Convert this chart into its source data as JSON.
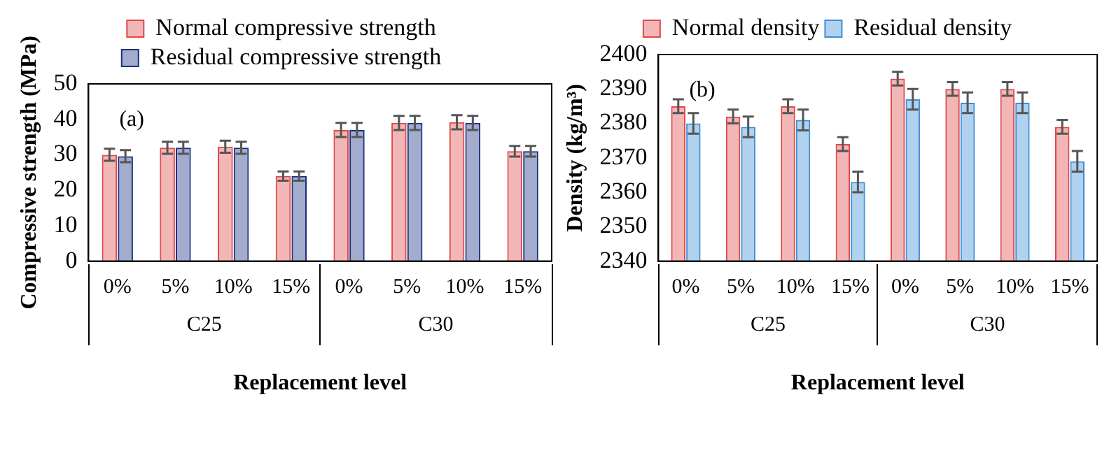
{
  "chart_data": [
    {
      "type": "bar",
      "title": "(a)",
      "ylabel": "Compressive strength (MPa)",
      "xlabel": "Replacement level",
      "categories": [
        "0%",
        "5%",
        "10%",
        "15%",
        "0%",
        "5%",
        "10%",
        "15%"
      ],
      "annotations": [
        "C25",
        "C30"
      ],
      "series": [
        {
          "name": "Normal compressive strength",
          "color": "#e04848",
          "values": [
            30,
            32,
            32.3,
            24,
            37,
            39,
            39.2,
            31
          ],
          "errors": [
            1.7,
            1.7,
            1.7,
            1.3,
            2,
            2,
            2,
            1.5
          ]
        },
        {
          "name": "Residual compressive strength",
          "color": "#1a2f80",
          "values": [
            29.6,
            32,
            32,
            24,
            37,
            39,
            39,
            31
          ],
          "errors": [
            1.7,
            1.7,
            1.7,
            1.3,
            2,
            2,
            2,
            1.5
          ]
        }
      ],
      "ylim": [
        0,
        50
      ],
      "yticks": [
        0,
        10,
        20,
        30,
        40,
        50
      ],
      "grid": false,
      "legend": "top"
    },
    {
      "type": "bar",
      "title": "(b)",
      "ylabel": "Density (kg/m³)",
      "xlabel": "Replacement level",
      "categories": [
        "0%",
        "5%",
        "10%",
        "15%",
        "0%",
        "5%",
        "10%",
        "15%"
      ],
      "annotations": [
        "C25",
        "C30"
      ],
      "series": [
        {
          "name": "Normal density",
          "color": "#e04848",
          "values": [
            2385,
            2382,
            2385,
            2374,
            2393,
            2390,
            2390,
            2379
          ],
          "errors": [
            2,
            2,
            2,
            2,
            2,
            2,
            2,
            2
          ]
        },
        {
          "name": "Residual density",
          "color": "#3a8fd6",
          "values": [
            2380,
            2379,
            2381,
            2363,
            2387,
            2386,
            2386,
            2369
          ],
          "errors": [
            3,
            3,
            3,
            3,
            3,
            3,
            3,
            3
          ]
        }
      ],
      "ylim": [
        2340,
        2400
      ],
      "yticks": [
        2340,
        2350,
        2360,
        2370,
        2380,
        2390,
        2400
      ],
      "grid": false,
      "legend": "top"
    }
  ]
}
